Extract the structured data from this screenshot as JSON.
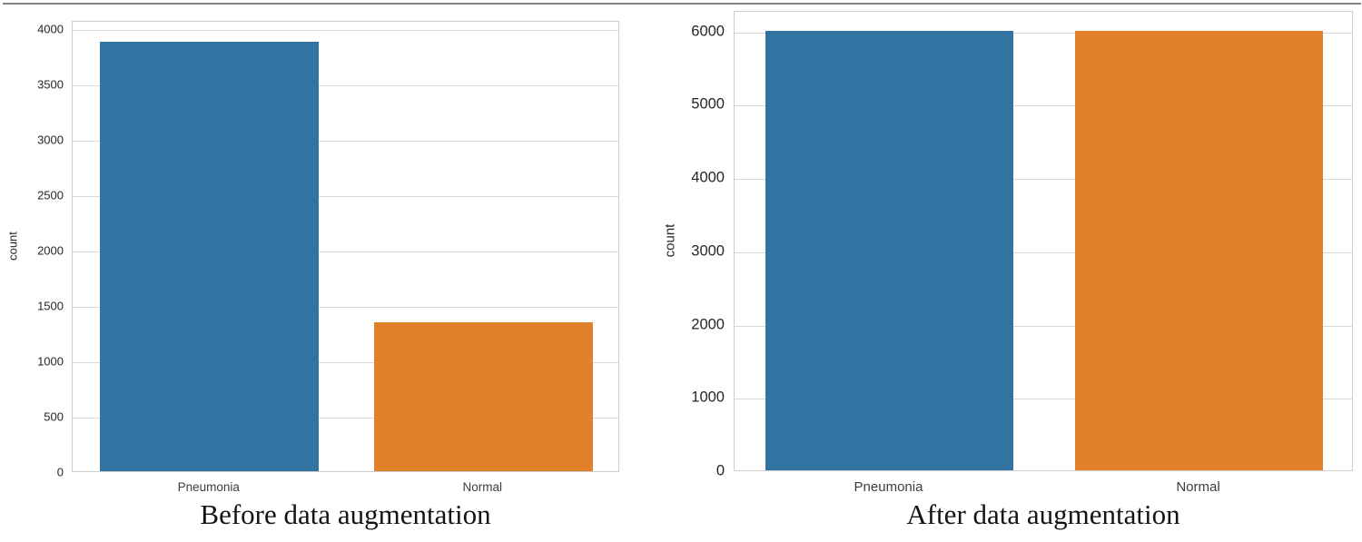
{
  "figure": {
    "top_border_color": "#828282",
    "background": "#ffffff"
  },
  "chart_data": [
    {
      "type": "bar",
      "title": "Before data augmentation",
      "xlabel": "",
      "ylabel": "count",
      "categories": [
        "Pneumonia",
        "Normal"
      ],
      "values": [
        3875,
        1341
      ],
      "bar_colors": [
        "#3274a1",
        "#e1812c"
      ],
      "yticks": [
        0,
        500,
        1000,
        1500,
        2000,
        2500,
        3000,
        3500,
        4000
      ],
      "ylim": [
        0,
        4070
      ],
      "grid": "horizontal",
      "legend": "none"
    },
    {
      "type": "bar",
      "title": "After data augmentation",
      "xlabel": "",
      "ylabel": "count",
      "categories": [
        "Pneumonia",
        "Normal"
      ],
      "values": [
        6000,
        6000
      ],
      "bar_colors": [
        "#3274a1",
        "#e1812c"
      ],
      "yticks": [
        0,
        1000,
        2000,
        3000,
        4000,
        5000,
        6000
      ],
      "ylim": [
        0,
        6280
      ],
      "grid": "horizontal",
      "legend": "none"
    }
  ]
}
